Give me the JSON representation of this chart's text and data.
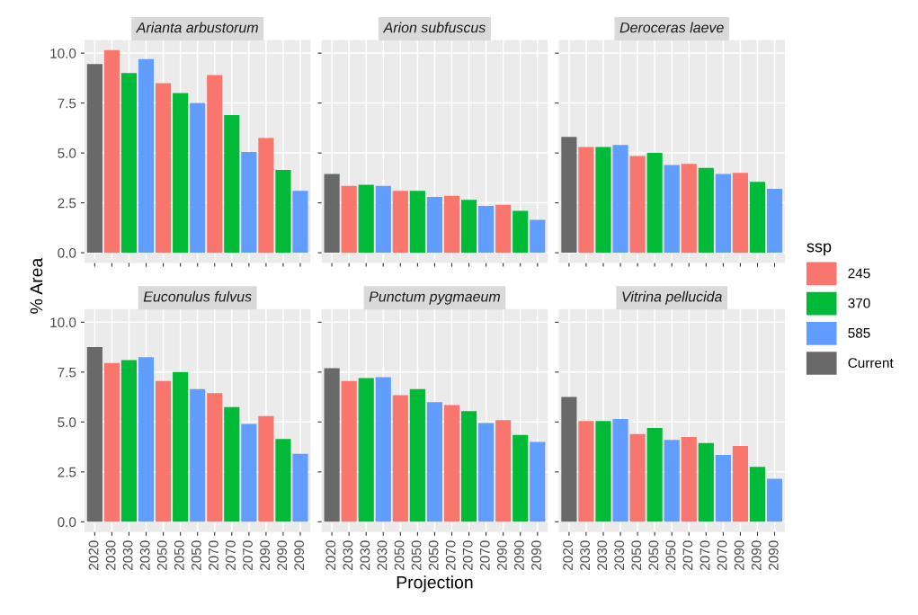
{
  "chart_data": [
    {
      "type": "bar",
      "title": "Arianta arbustorum",
      "ylabel": "% Area",
      "legend_title": "ssp",
      "categories": [
        "2020",
        "2030",
        "2030",
        "2030",
        "2050",
        "2050",
        "2050",
        "2070",
        "2070",
        "2070",
        "2090",
        "2090",
        "2090"
      ],
      "ylim": [
        -0.51,
        10.66
      ],
      "yticks": [
        {
          "value": 0,
          "label": "0.0"
        },
        2.5,
        {
          "value": 5,
          "label": "5.0"
        },
        7.5,
        {
          "value": 10,
          "label": "10.0"
        }
      ],
      "grid": true,
      "legend": "right",
      "tick_labels": "y",
      "series": [
        {
          "name": "245",
          "color": "#f8766d",
          "values": [
            null,
            10.15,
            null,
            null,
            8.5,
            null,
            null,
            8.9,
            null,
            null,
            5.75,
            null,
            null
          ]
        },
        {
          "name": "370",
          "color": "#00ba38",
          "values": [
            null,
            null,
            9.0,
            null,
            null,
            8.0,
            null,
            null,
            6.9,
            null,
            null,
            4.15,
            null
          ]
        },
        {
          "name": "585",
          "color": "#619cff",
          "values": [
            null,
            null,
            null,
            9.7,
            null,
            null,
            7.5,
            null,
            null,
            5.05,
            null,
            null,
            3.1
          ]
        },
        {
          "name": "Current",
          "color": "#696969",
          "values": [
            9.45,
            null,
            null,
            null,
            null,
            null,
            null,
            null,
            null,
            null,
            null,
            null,
            null
          ]
        }
      ]
    },
    {
      "type": "bar",
      "title": "Arion subfuscus",
      "categories": [
        "2020",
        "2030",
        "2030",
        "2030",
        "2050",
        "2050",
        "2050",
        "2070",
        "2070",
        "2070",
        "2090",
        "2090",
        "2090"
      ],
      "ylim": [
        -0.51,
        10.66
      ],
      "yticks": [
        0,
        2.5,
        5,
        7.5,
        10
      ],
      "grid": true,
      "tick_labels": false,
      "series": [
        {
          "color": "#f8766d",
          "values": [
            null,
            3.35,
            null,
            null,
            3.1,
            null,
            null,
            2.85,
            null,
            null,
            2.4,
            null,
            null
          ]
        },
        {
          "color": "#00ba38",
          "values": [
            null,
            null,
            3.4,
            null,
            null,
            3.1,
            null,
            null,
            2.65,
            null,
            null,
            2.1,
            null
          ]
        },
        {
          "color": "#619cff",
          "values": [
            null,
            null,
            null,
            3.35,
            null,
            null,
            2.8,
            null,
            null,
            2.35,
            null,
            null,
            1.65
          ]
        },
        {
          "color": "#696969",
          "values": [
            3.95,
            null,
            null,
            null,
            null,
            null,
            null,
            null,
            null,
            null,
            null,
            null,
            null
          ]
        }
      ]
    },
    {
      "type": "bar",
      "title": "Deroceras laeve",
      "categories": [
        "2020",
        "2030",
        "2030",
        "2030",
        "2050",
        "2050",
        "2050",
        "2070",
        "2070",
        "2070",
        "2090",
        "2090",
        "2090"
      ],
      "ylim": [
        -0.51,
        10.66
      ],
      "yticks": [
        0,
        2.5,
        5,
        7.5,
        10
      ],
      "grid": true,
      "tick_labels": false,
      "series": [
        {
          "color": "#f8766d",
          "values": [
            null,
            5.3,
            null,
            null,
            4.85,
            null,
            null,
            4.45,
            null,
            null,
            4.0,
            null,
            null
          ]
        },
        {
          "color": "#00ba38",
          "values": [
            null,
            null,
            5.3,
            null,
            null,
            5.0,
            null,
            null,
            4.25,
            null,
            null,
            3.55,
            null
          ]
        },
        {
          "color": "#619cff",
          "values": [
            null,
            null,
            null,
            5.4,
            null,
            null,
            4.4,
            null,
            null,
            3.95,
            null,
            null,
            3.2
          ]
        },
        {
          "color": "#696969",
          "values": [
            5.8,
            null,
            null,
            null,
            null,
            null,
            null,
            null,
            null,
            null,
            null,
            null,
            null
          ]
        }
      ]
    },
    {
      "type": "bar",
      "title": "Euconulus fulvus",
      "categories": [
        "2020",
        "2030",
        "2030",
        "2030",
        "2050",
        "2050",
        "2050",
        "2070",
        "2070",
        "2070",
        "2090",
        "2090",
        "2090"
      ],
      "ylim": [
        -0.51,
        10.66
      ],
      "yticks": [
        {
          "value": 0,
          "label": "0.0"
        },
        2.5,
        {
          "value": 5,
          "label": "5.0"
        },
        7.5,
        {
          "value": 10,
          "label": "10.0"
        }
      ],
      "grid": true,
      "series": [
        {
          "color": "#f8766d",
          "values": [
            null,
            7.95,
            null,
            null,
            7.05,
            null,
            null,
            6.45,
            null,
            null,
            5.3,
            null,
            null
          ]
        },
        {
          "color": "#00ba38",
          "values": [
            null,
            null,
            8.1,
            null,
            null,
            7.5,
            null,
            null,
            5.75,
            null,
            null,
            4.15,
            null
          ]
        },
        {
          "color": "#619cff",
          "values": [
            null,
            null,
            null,
            8.25,
            null,
            null,
            6.65,
            null,
            null,
            4.9,
            null,
            null,
            3.4
          ]
        },
        {
          "color": "#696969",
          "values": [
            8.75,
            null,
            null,
            null,
            null,
            null,
            null,
            null,
            null,
            null,
            null,
            null,
            null
          ]
        }
      ]
    },
    {
      "type": "bar",
      "title": "Punctum pygmaeum",
      "xlabel": "Projection",
      "categories": [
        "2020",
        "2030",
        "2030",
        "2030",
        "2050",
        "2050",
        "2050",
        "2070",
        "2070",
        "2070",
        "2090",
        "2090",
        "2090"
      ],
      "ylim": [
        -0.51,
        10.66
      ],
      "yticks": [
        0,
        2.5,
        5,
        7.5,
        10
      ],
      "grid": true,
      "tick_labels": "x",
      "series": [
        {
          "color": "#f8766d",
          "values": [
            null,
            7.05,
            null,
            null,
            6.35,
            null,
            null,
            5.85,
            null,
            null,
            5.1,
            null,
            null
          ]
        },
        {
          "color": "#00ba38",
          "values": [
            null,
            null,
            7.2,
            null,
            null,
            6.65,
            null,
            null,
            5.55,
            null,
            null,
            4.35,
            null
          ]
        },
        {
          "color": "#619cff",
          "values": [
            null,
            null,
            null,
            7.25,
            null,
            null,
            6.0,
            null,
            null,
            4.95,
            null,
            null,
            4.0
          ]
        },
        {
          "color": "#696969",
          "values": [
            7.7,
            null,
            null,
            null,
            null,
            null,
            null,
            null,
            null,
            null,
            null,
            null,
            null
          ]
        }
      ]
    },
    {
      "type": "bar",
      "title": "Vitrina pellucida",
      "categories": [
        "2020",
        "2030",
        "2030",
        "2030",
        "2050",
        "2050",
        "2050",
        "2070",
        "2070",
        "2070",
        "2090",
        "2090",
        "2090"
      ],
      "ylim": [
        -0.51,
        10.66
      ],
      "yticks": [
        0,
        2.5,
        5,
        7.5,
        10
      ],
      "grid": true,
      "tick_labels": "x",
      "series": [
        {
          "color": "#f8766d",
          "values": [
            null,
            5.05,
            null,
            null,
            4.4,
            null,
            null,
            4.25,
            null,
            null,
            3.8,
            null,
            null
          ]
        },
        {
          "color": "#00ba38",
          "values": [
            null,
            null,
            5.05,
            null,
            null,
            4.7,
            null,
            null,
            3.95,
            null,
            null,
            2.75,
            null
          ]
        },
        {
          "color": "#619cff",
          "values": [
            null,
            null,
            null,
            5.15,
            null,
            null,
            4.1,
            null,
            null,
            3.35,
            null,
            null,
            2.15
          ]
        },
        {
          "color": "#696969",
          "values": [
            6.25,
            null,
            null,
            null,
            null,
            null,
            null,
            null,
            null,
            null,
            null,
            null,
            null
          ]
        }
      ]
    }
  ]
}
